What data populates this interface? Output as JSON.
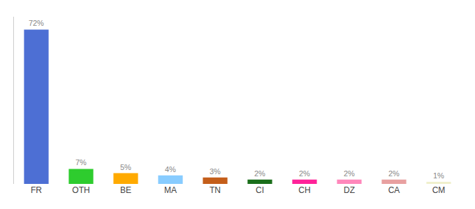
{
  "chart_data": {
    "type": "bar",
    "categories": [
      "FR",
      "OTH",
      "BE",
      "MA",
      "TN",
      "CI",
      "CH",
      "DZ",
      "CA",
      "CM"
    ],
    "values": [
      72,
      7,
      5,
      4,
      3,
      2,
      2,
      2,
      2,
      1
    ],
    "value_labels": [
      "72%",
      "7%",
      "5%",
      "4%",
      "3%",
      "2%",
      "2%",
      "2%",
      "2%",
      "1%"
    ],
    "colors": [
      "#4d6fd4",
      "#2ecc2e",
      "#ffaa00",
      "#88ccff",
      "#c45e1a",
      "#1a6e1a",
      "#ff2299",
      "#ff88bb",
      "#e8a0a0",
      "#f0f0cc"
    ],
    "ylim": [
      0,
      78
    ],
    "yticks": [],
    "grid": false,
    "data_labels": true,
    "tick_labels": "x"
  }
}
